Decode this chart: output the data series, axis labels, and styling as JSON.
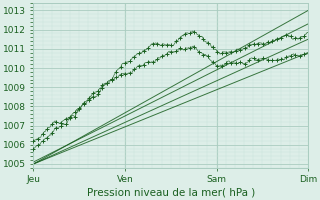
{
  "xlabel": "Pression niveau de la mer( hPa )",
  "bg_color": "#ddeee8",
  "plot_bg_color": "#ddeee8",
  "grid_major_color": "#aaccc0",
  "grid_minor_color": "#c8e4da",
  "line_color": "#1a6020",
  "ylim": [
    1004.8,
    1013.4
  ],
  "yticks": [
    1005,
    1006,
    1007,
    1008,
    1009,
    1010,
    1011,
    1012,
    1013
  ],
  "day_labels": [
    "Jeu",
    "Ven",
    "Sam",
    "Dim"
  ],
  "day_positions": [
    0,
    0.333,
    0.667,
    1.0
  ],
  "n": 300
}
